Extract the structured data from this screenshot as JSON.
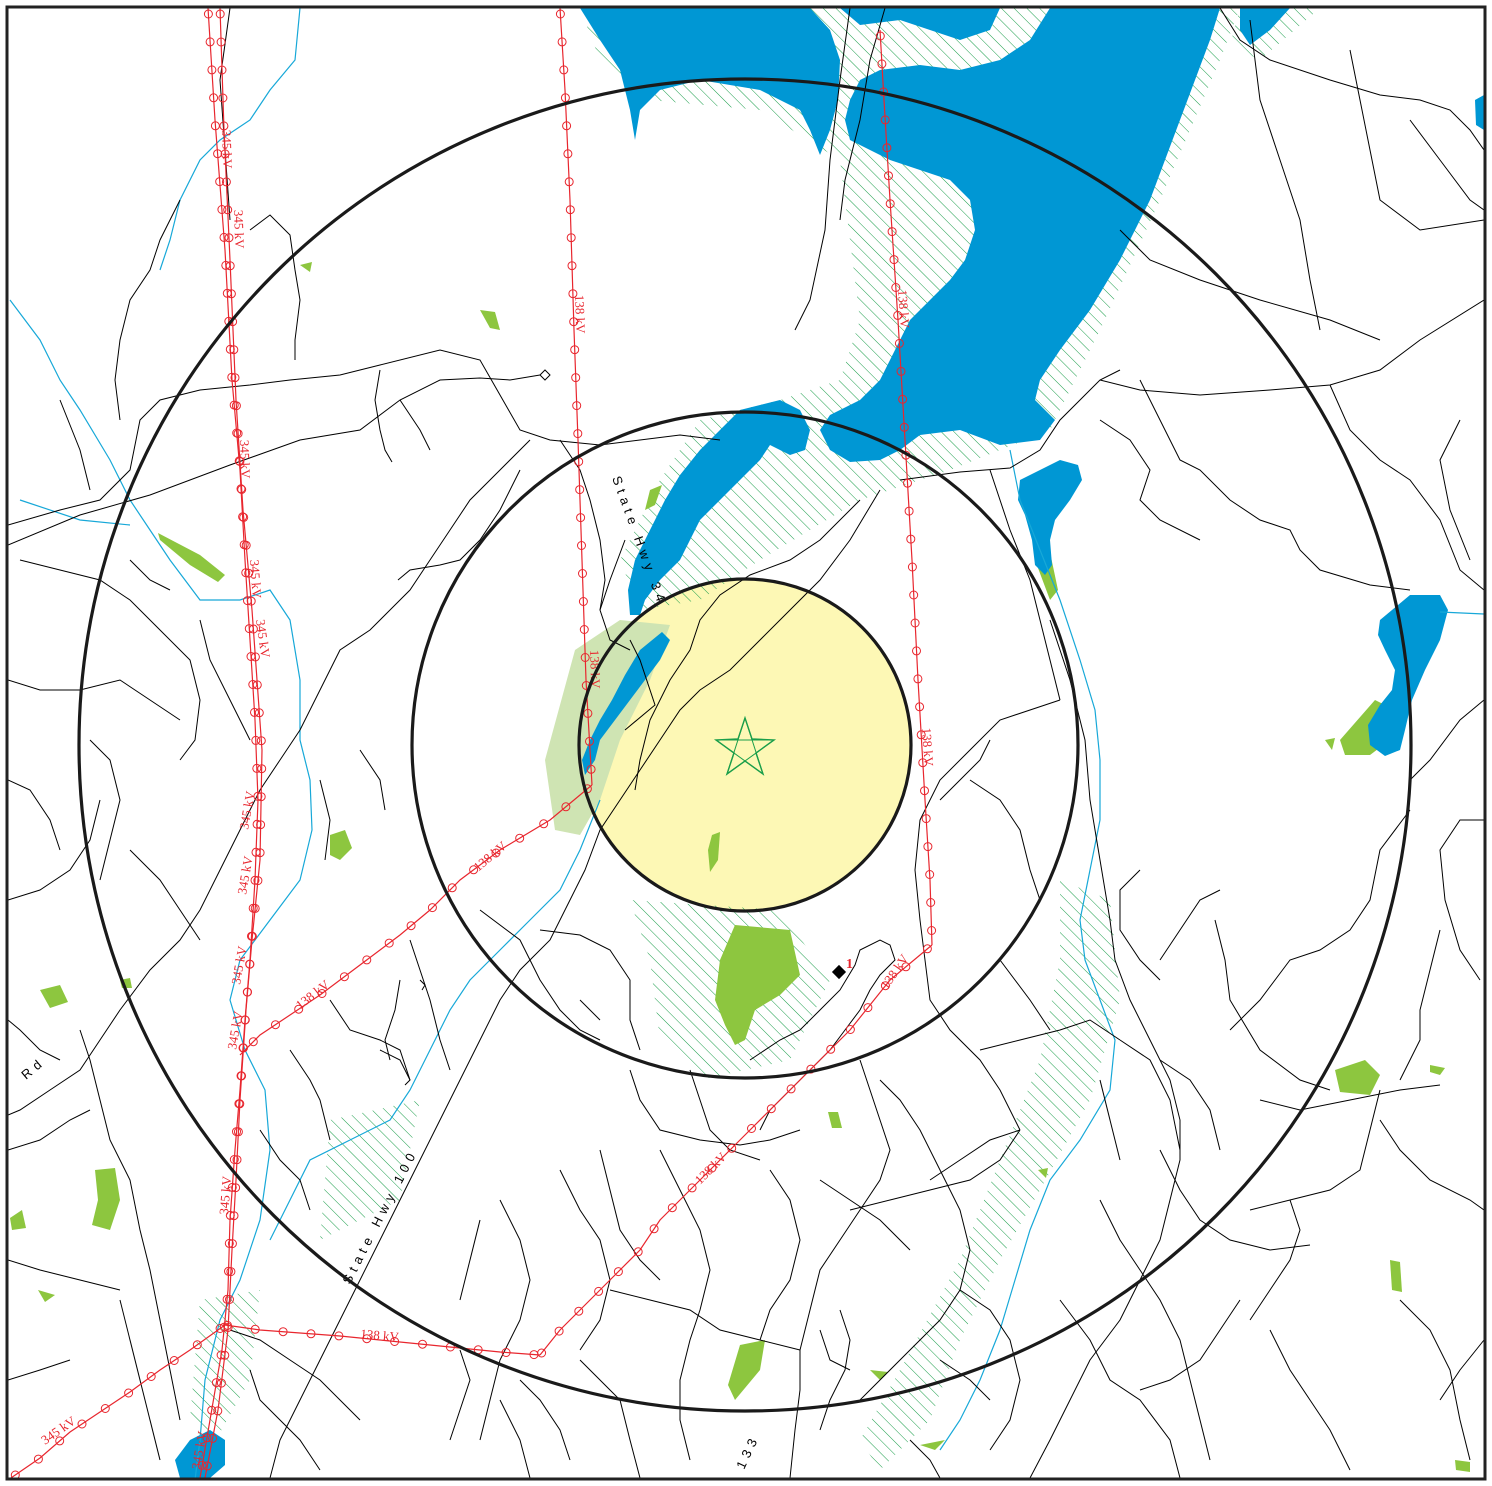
{
  "map": {
    "labels": {
      "kv_345": "345 kV",
      "kv_138": "138 kV",
      "highway_34": "State Hwy 34",
      "highway_100": "State Hwy 100",
      "road_133": "133",
      "road_rd": "Rd",
      "site_marker": "1"
    },
    "colors": {
      "water": "#0097d4",
      "wetland": "#8dc63f",
      "hatch": "#1a9e4a",
      "power_line": "#e8262e",
      "stream": "#17a8d8",
      "inner_zone": "#fdf8b5",
      "ring": "#1a1a1a"
    },
    "icons": {
      "center": "star-icon",
      "site": "diamond-marker-icon"
    }
  }
}
